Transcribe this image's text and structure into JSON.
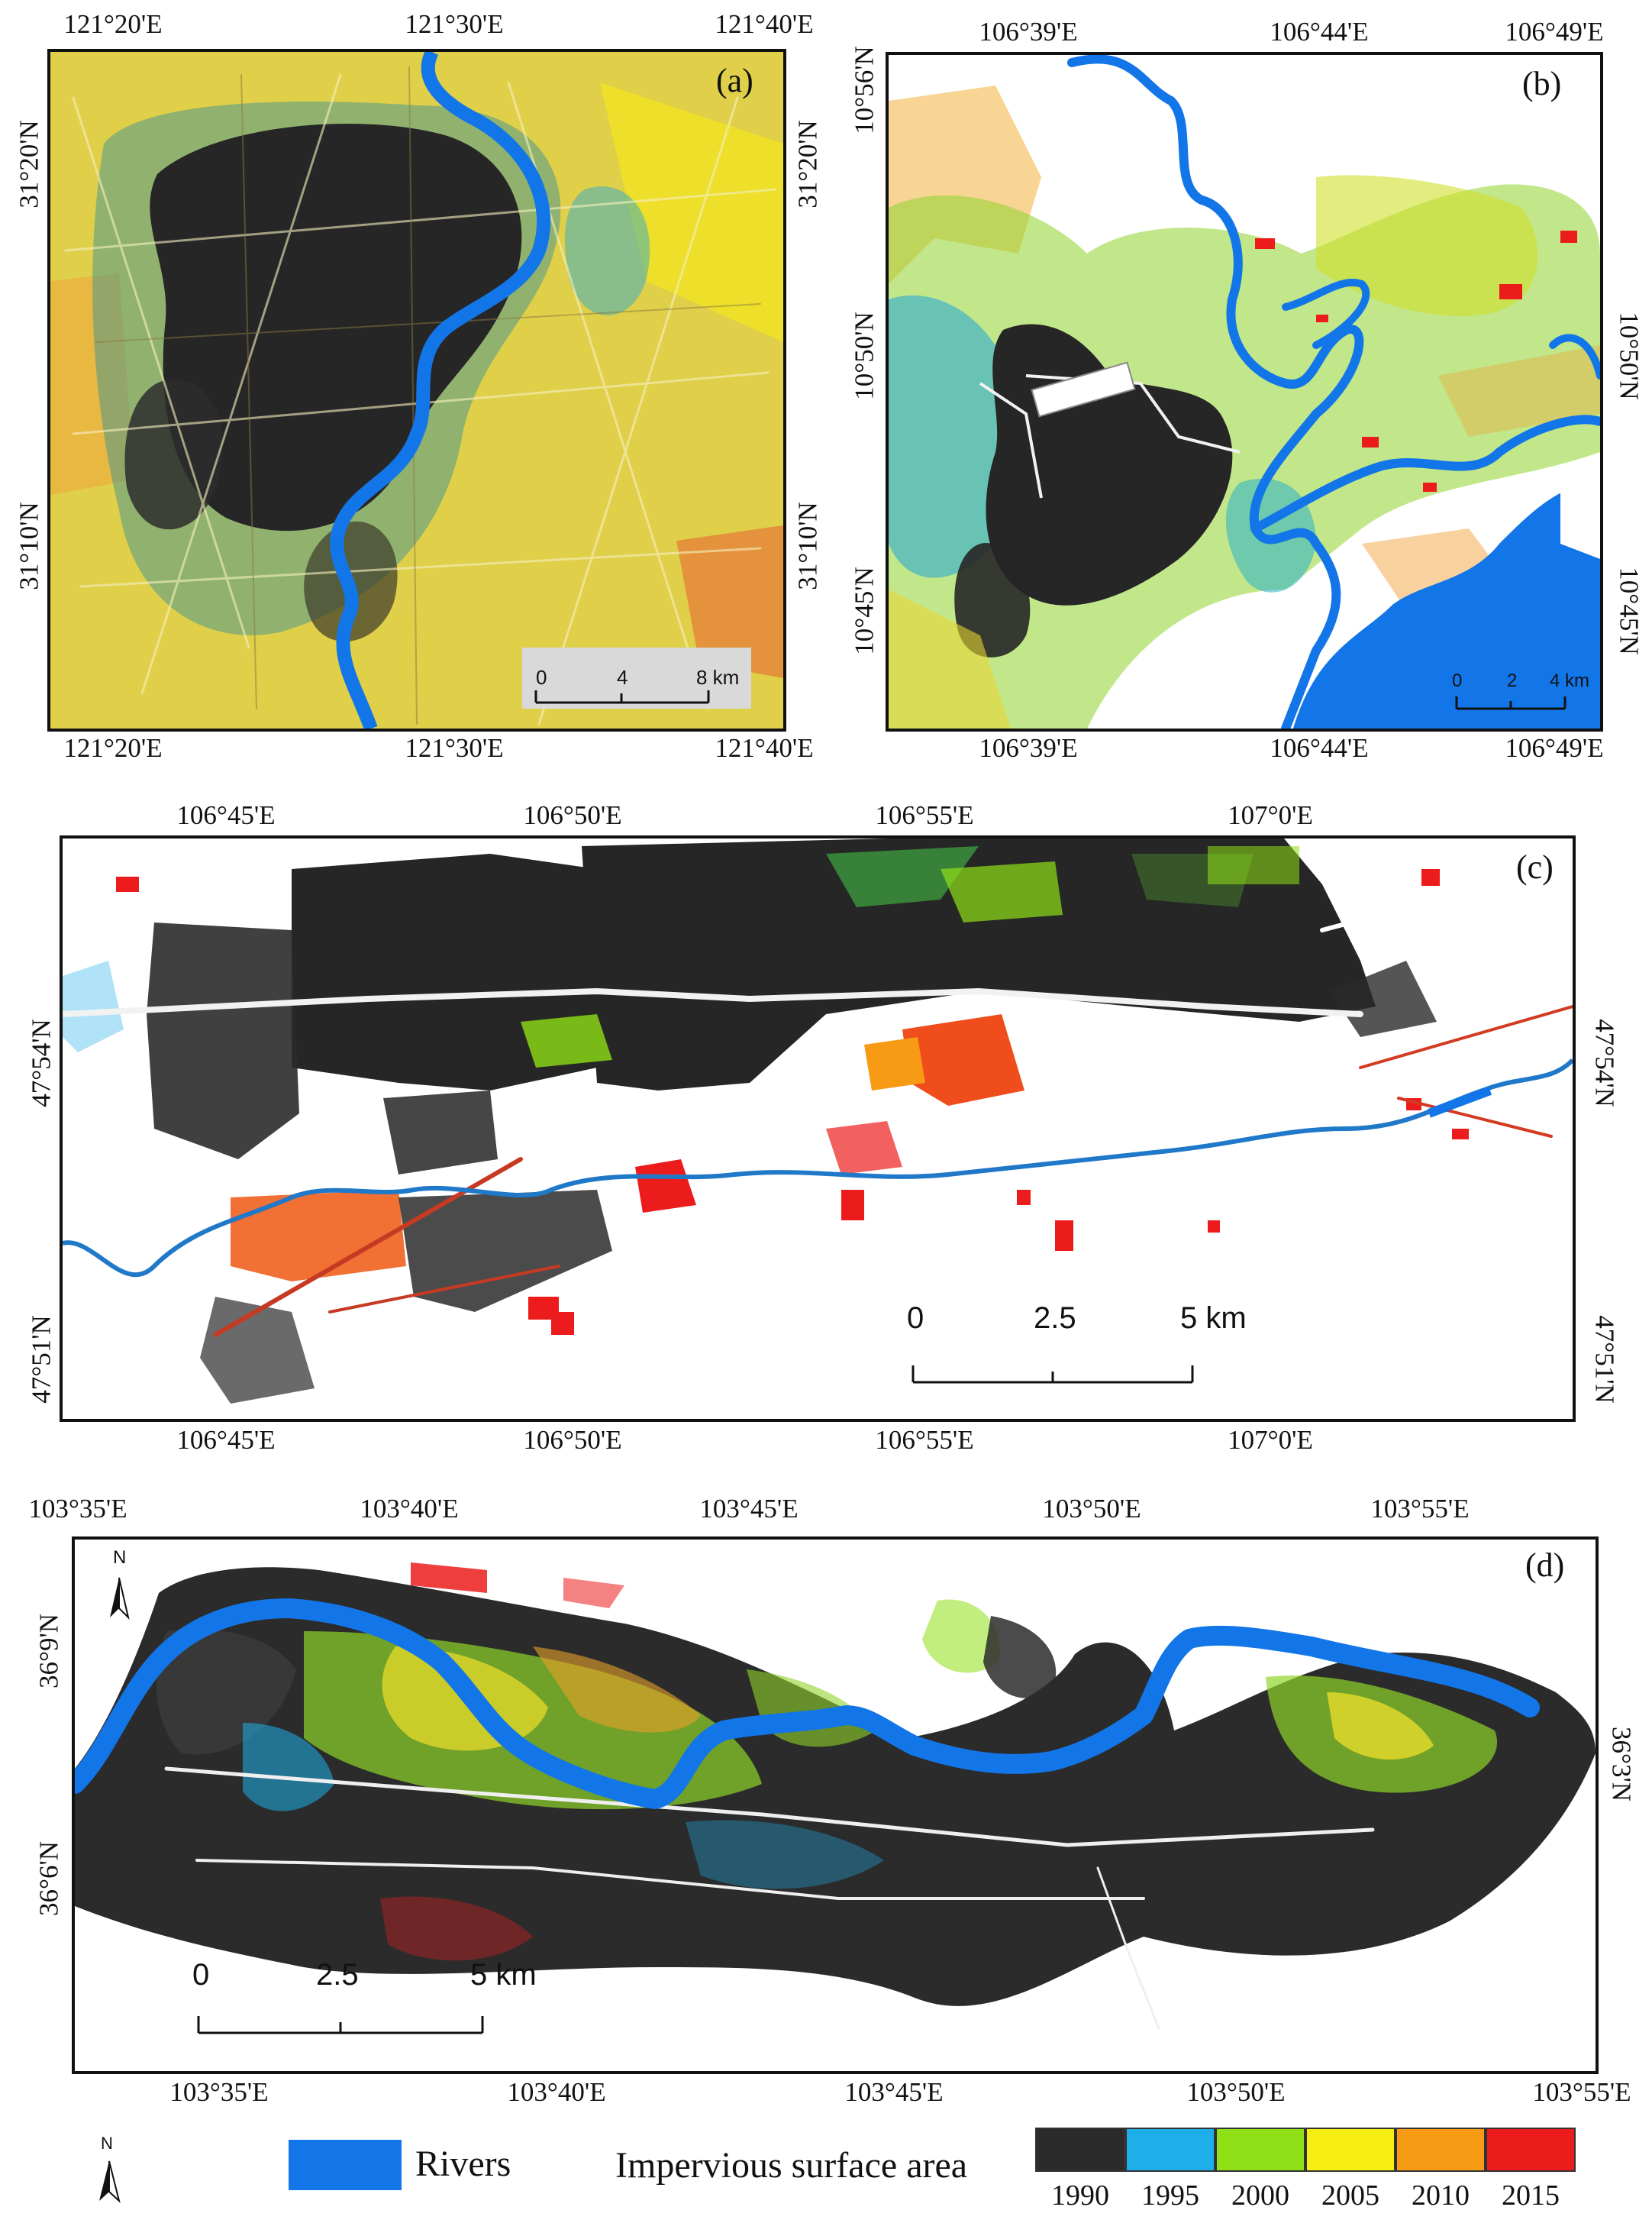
{
  "panels": {
    "a": {
      "label": "(a)",
      "top_ticks": [
        "121°20'E",
        "121°30'E",
        "121°40'E"
      ],
      "bottom_ticks": [
        "121°20'E",
        "121°30'E",
        "121°40'E"
      ],
      "left_ticks": [
        "31°20'N",
        "31°10'N"
      ],
      "right_ticks": [
        "31°20'N",
        "31°10'N"
      ],
      "scale": {
        "labels": [
          "0",
          "4",
          "8 km"
        ]
      }
    },
    "b": {
      "label": "(b)",
      "top_ticks": [
        "106°39'E",
        "106°44'E",
        "106°49'E"
      ],
      "bottom_ticks": [
        "106°39'E",
        "106°44'E",
        "106°49'E"
      ],
      "left_ticks": [
        "10°56'N",
        "10°50'N",
        "10°45'N"
      ],
      "right_ticks": [
        "10°50'N",
        "10°45'N"
      ],
      "scale": {
        "labels": [
          "0",
          "2",
          "4 km"
        ]
      }
    },
    "c": {
      "label": "(c)",
      "top_ticks": [
        "106°45'E",
        "106°50'E",
        "106°55'E",
        "107°0'E"
      ],
      "bottom_ticks": [
        "106°45'E",
        "106°50'E",
        "106°55'E",
        "107°0'E"
      ],
      "left_ticks": [
        "47°54'N",
        "47°51'N"
      ],
      "right_ticks": [
        "47°54'N",
        "47°51'N"
      ],
      "scale": {
        "labels": [
          "0",
          "2.5",
          "5 km"
        ]
      }
    },
    "d": {
      "label": "(d)",
      "top_ticks": [
        "103°35'E",
        "103°40'E",
        "103°45'E",
        "103°50'E",
        "103°55'E"
      ],
      "bottom_ticks": [
        "103°35'E",
        "103°40'E",
        "103°45'E",
        "103°50'E",
        "103°55'E"
      ],
      "left_ticks": [
        "36°9'N",
        "36°6'N"
      ],
      "right_ticks": [
        "36°3'N"
      ],
      "scale": {
        "labels": [
          "0",
          "2.5",
          "5 km"
        ]
      }
    }
  },
  "north_arrow": "N",
  "legend": {
    "rivers_label": "Rivers",
    "isa_label": "Impervious surface area",
    "classes": [
      {
        "year": "1990",
        "color": "#2b2b2b"
      },
      {
        "year": "1995",
        "color": "#1eaeea"
      },
      {
        "year": "2000",
        "color": "#8fe016"
      },
      {
        "year": "2005",
        "color": "#f5ee10"
      },
      {
        "year": "2010",
        "color": "#f79a14"
      },
      {
        "year": "2015",
        "color": "#ec1c1c"
      }
    ],
    "river_color": "#1376e8"
  }
}
